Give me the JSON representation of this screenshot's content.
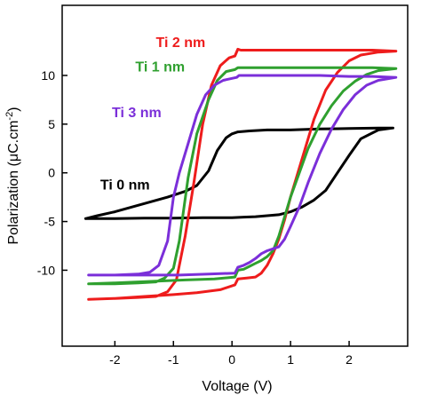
{
  "chart_data": {
    "type": "line",
    "title": "",
    "xlabel": "Voltage (V)",
    "ylabel_main": "Polarization (μC.cm",
    "ylabel_sup": "-2",
    "ylabel_close": ")",
    "xlim": [
      -2.9,
      3.0
    ],
    "ylim": [
      -17.8,
      17.2
    ],
    "x_ticks": [
      -2,
      -1,
      0,
      1,
      2
    ],
    "y_ticks": [
      10,
      5,
      0,
      -5,
      -10
    ],
    "x_tick_labels": [
      "-2",
      "-1",
      "0",
      "1",
      "2"
    ],
    "y_tick_labels": [
      "10",
      "5",
      "0",
      "-5",
      "-10"
    ],
    "grid": false,
    "legend": "inline labels",
    "series": [
      {
        "name": "Ti 0 nm",
        "color": "#000000",
        "x": [
          -2.5,
          -2.3,
          -2.0,
          -1.7,
          -1.4,
          -1.1,
          -0.8,
          -0.6,
          -0.4,
          -0.25,
          -0.1,
          0.0,
          0.1,
          0.3,
          0.6,
          1.0,
          1.5,
          2.0,
          2.5,
          2.75,
          2.75,
          2.5,
          2.2,
          2.0,
          1.8,
          1.6,
          1.4,
          1.2,
          1.0,
          0.8,
          0.6,
          0.4,
          0.2,
          0.0,
          -0.5,
          -1.0,
          -1.5,
          -2.0,
          -2.5
        ],
        "y": [
          -4.7,
          -4.4,
          -4.0,
          -3.5,
          -3.0,
          -2.5,
          -1.9,
          -1.3,
          0.2,
          2.3,
          3.6,
          4.0,
          4.2,
          4.3,
          4.4,
          4.4,
          4.5,
          4.55,
          4.6,
          4.6,
          4.6,
          4.4,
          3.5,
          1.8,
          0.0,
          -1.8,
          -2.8,
          -3.5,
          -4.0,
          -4.3,
          -4.4,
          -4.5,
          -4.55,
          -4.6,
          -4.6,
          -4.65,
          -4.65,
          -4.7,
          -4.7
        ]
      },
      {
        "name": "Ti 2 nm",
        "color": "#ee1c1c",
        "x": [
          -2.45,
          -2.0,
          -1.6,
          -1.3,
          -1.1,
          -0.95,
          -0.8,
          -0.65,
          -0.5,
          -0.35,
          -0.2,
          -0.05,
          0.05,
          0.1,
          0.15,
          0.3,
          0.6,
          1.0,
          1.5,
          2.0,
          2.4,
          2.8,
          2.8,
          2.5,
          2.2,
          2.0,
          1.8,
          1.6,
          1.4,
          1.25,
          1.1,
          1.0,
          0.9,
          0.8,
          0.7,
          0.6,
          0.5,
          0.4,
          0.25,
          0.1,
          0.05,
          -0.2,
          -0.6,
          -1.0,
          -1.5,
          -2.0,
          -2.45
        ],
        "y": [
          -13.0,
          -12.9,
          -12.8,
          -12.7,
          -12.2,
          -11.0,
          -6.5,
          -1.0,
          5.0,
          9.0,
          11.0,
          11.8,
          12.0,
          12.7,
          12.6,
          12.6,
          12.6,
          12.6,
          12.6,
          12.6,
          12.6,
          12.5,
          12.5,
          12.4,
          12.1,
          11.5,
          10.3,
          8.5,
          5.5,
          2.5,
          -0.5,
          -2.5,
          -4.8,
          -6.8,
          -8.3,
          -9.5,
          -10.3,
          -10.7,
          -10.8,
          -10.9,
          -11.5,
          -12.0,
          -12.3,
          -12.5,
          -12.7,
          -12.9,
          -13.0
        ]
      },
      {
        "name": "Ti 1 nm",
        "color": "#2fa02f",
        "x": [
          -2.45,
          -2.0,
          -1.6,
          -1.3,
          -1.15,
          -1.0,
          -0.9,
          -0.75,
          -0.6,
          -0.4,
          -0.25,
          -0.1,
          0.05,
          0.1,
          0.3,
          0.6,
          1.0,
          1.5,
          2.0,
          2.4,
          2.8,
          2.8,
          2.5,
          2.3,
          2.1,
          1.9,
          1.7,
          1.5,
          1.3,
          1.15,
          1.0,
          0.9,
          0.8,
          0.7,
          0.6,
          0.5,
          0.4,
          0.3,
          0.2,
          0.1,
          0.05,
          -0.3,
          -0.8,
          -1.2,
          -1.6,
          -2.0,
          -2.45
        ],
        "y": [
          -11.4,
          -11.4,
          -11.3,
          -11.2,
          -10.8,
          -9.8,
          -7.0,
          -0.5,
          4.0,
          7.5,
          9.5,
          10.4,
          10.6,
          10.8,
          10.8,
          10.8,
          10.8,
          10.8,
          10.8,
          10.8,
          10.7,
          10.7,
          10.5,
          10.1,
          9.4,
          8.4,
          6.9,
          5.0,
          2.5,
          0.0,
          -2.5,
          -4.5,
          -6.5,
          -8.0,
          -8.6,
          -9.0,
          -9.3,
          -9.6,
          -9.9,
          -10.0,
          -10.7,
          -10.9,
          -11.0,
          -11.1,
          -11.2,
          -11.3,
          -11.4
        ]
      },
      {
        "name": "Ti 3 nm",
        "color": "#7b2fd9",
        "x": [
          -2.45,
          -2.0,
          -1.6,
          -1.4,
          -1.25,
          -1.1,
          -1.0,
          -0.9,
          -0.75,
          -0.6,
          -0.45,
          -0.3,
          -0.15,
          0.0,
          0.08,
          0.12,
          0.3,
          0.6,
          1.0,
          1.5,
          2.0,
          2.4,
          2.8,
          2.8,
          2.5,
          2.3,
          2.1,
          1.9,
          1.7,
          1.5,
          1.3,
          1.15,
          1.0,
          0.9,
          0.8,
          0.7,
          0.6,
          0.5,
          0.4,
          0.3,
          0.2,
          0.1,
          0.05,
          -0.4,
          -0.9,
          -1.4,
          -2.0,
          -2.45
        ],
        "y": [
          -10.5,
          -10.5,
          -10.4,
          -10.2,
          -9.5,
          -7.0,
          -2.5,
          0.0,
          3.0,
          6.0,
          8.0,
          9.0,
          9.5,
          9.7,
          9.8,
          10.0,
          10.0,
          10.0,
          10.0,
          10.0,
          9.9,
          9.9,
          9.8,
          9.8,
          9.5,
          9.0,
          8.0,
          6.5,
          4.5,
          2.0,
          -1.0,
          -3.5,
          -5.5,
          -6.8,
          -7.6,
          -7.8,
          -8.0,
          -8.3,
          -8.8,
          -9.2,
          -9.5,
          -9.7,
          -10.3,
          -10.4,
          -10.5,
          -10.5,
          -10.5,
          -10.5
        ]
      }
    ],
    "annotations": [
      {
        "text": "Ti 2 nm",
        "color": "#ee1c1c",
        "x": -1.3,
        "y": 12.9
      },
      {
        "text": "Ti 1 nm",
        "color": "#2fa02f",
        "x": -1.65,
        "y": 10.4
      },
      {
        "text": "Ti 3 nm",
        "color": "#7b2fd9",
        "x": -2.05,
        "y": 5.7
      },
      {
        "text": "Ti 0 nm",
        "color": "#000000",
        "x": -2.25,
        "y": -1.7
      }
    ]
  }
}
